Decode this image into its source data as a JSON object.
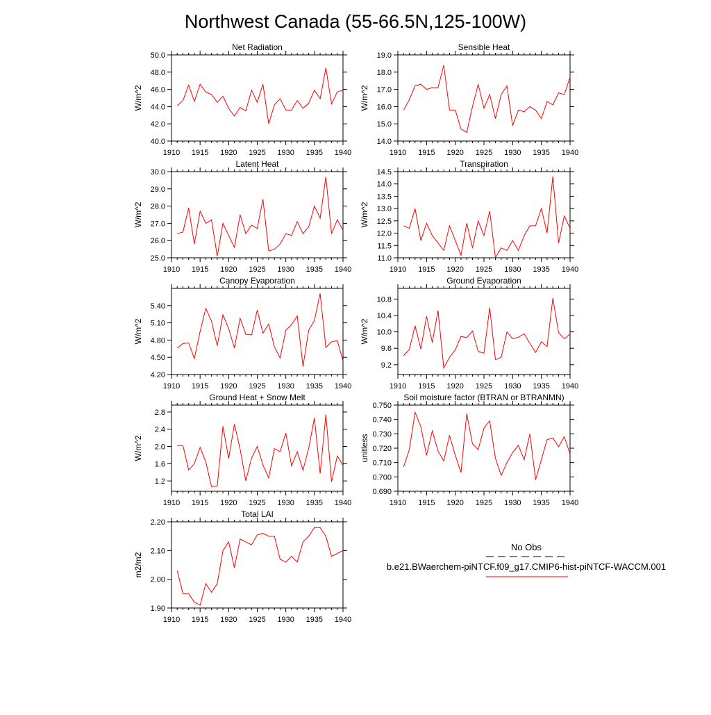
{
  "title": "Northwest Canada (55-66.5N,125-100W)",
  "colors": {
    "model": "#ff0000",
    "obs": "#000000",
    "axis": "#000000"
  },
  "legend": {
    "obs_label": "No Obs",
    "model_label": "b.e21.BWaerchem-piNTCF.f09_g17.CMIP6-hist-piNTCF-WACCM.001"
  },
  "chart_data": [
    {
      "type": "line",
      "title": "Net Radiation",
      "ylabel": "W/m^2",
      "xlabel": "",
      "xlim": [
        1910,
        1940
      ],
      "ylim": [
        40.0,
        50.0
      ],
      "xticks": [
        1910,
        1915,
        1920,
        1925,
        1930,
        1935,
        1940
      ],
      "xtick_labels": [
        "1910",
        "1915",
        "1920",
        "1925",
        "1930",
        "1935",
        "1940"
      ],
      "yticks": [
        40,
        42,
        44,
        46,
        48,
        50
      ],
      "ytick_labels": [
        "40.0",
        "42.0",
        "44.0",
        "46.0",
        "48.0",
        "50.0"
      ],
      "grid": false,
      "legend": "none",
      "x": [
        1911,
        1912,
        1913,
        1914,
        1915,
        1916,
        1917,
        1918,
        1919,
        1920,
        1921,
        1922,
        1923,
        1924,
        1925,
        1926,
        1927,
        1928,
        1929,
        1930,
        1931,
        1932,
        1933,
        1934,
        1935,
        1936,
        1937,
        1938,
        1939,
        1940
      ],
      "series": [
        {
          "values": [
            44.1,
            44.7,
            46.5,
            44.6,
            46.6,
            45.7,
            45.4,
            44.5,
            45.2,
            43.8,
            42.9,
            43.9,
            43.5,
            45.9,
            44.5,
            46.6,
            42.0,
            44.2,
            44.9,
            43.6,
            43.6,
            44.7,
            43.8,
            44.4,
            45.9,
            44.9,
            48.5,
            44.3,
            45.7,
            45.9
          ]
        }
      ]
    },
    {
      "type": "line",
      "title": "Sensible Heat",
      "ylabel": "W/m^2",
      "xlabel": "",
      "xlim": [
        1910,
        1940
      ],
      "ylim": [
        14.0,
        19.0
      ],
      "xticks": [
        1910,
        1915,
        1920,
        1925,
        1930,
        1935,
        1940
      ],
      "xtick_labels": [
        "1910",
        "1915",
        "1920",
        "1925",
        "1930",
        "1935",
        "1940"
      ],
      "yticks": [
        14,
        15,
        16,
        17,
        18,
        19
      ],
      "ytick_labels": [
        "14.0",
        "15.0",
        "16.0",
        "17.0",
        "18.0",
        "19.0"
      ],
      "grid": false,
      "legend": "none",
      "x": [
        1911,
        1912,
        1913,
        1914,
        1915,
        1916,
        1917,
        1918,
        1919,
        1920,
        1921,
        1922,
        1923,
        1924,
        1925,
        1926,
        1927,
        1928,
        1929,
        1930,
        1931,
        1932,
        1933,
        1934,
        1935,
        1936,
        1937,
        1938,
        1939,
        1940
      ],
      "series": [
        {
          "values": [
            15.8,
            16.4,
            17.2,
            17.3,
            17.0,
            17.1,
            17.1,
            18.4,
            15.8,
            15.8,
            14.7,
            14.5,
            16.0,
            17.3,
            15.9,
            16.7,
            15.3,
            16.7,
            17.2,
            14.9,
            15.8,
            15.7,
            16.0,
            15.8,
            15.3,
            16.3,
            16.1,
            16.8,
            16.7,
            17.7
          ]
        }
      ]
    },
    {
      "type": "line",
      "title": "Latent Heat",
      "ylabel": "W/m^2",
      "xlabel": "",
      "xlim": [
        1910,
        1940
      ],
      "ylim": [
        25.0,
        30.0
      ],
      "xticks": [
        1910,
        1915,
        1920,
        1925,
        1930,
        1935,
        1940
      ],
      "xtick_labels": [
        "1910",
        "1915",
        "1920",
        "1925",
        "1930",
        "1935",
        "1940"
      ],
      "yticks": [
        25,
        26,
        27,
        28,
        29,
        30
      ],
      "ytick_labels": [
        "25.0",
        "26.0",
        "27.0",
        "28.0",
        "29.0",
        "30.0"
      ],
      "grid": false,
      "legend": "none",
      "x": [
        1911,
        1912,
        1913,
        1914,
        1915,
        1916,
        1917,
        1918,
        1919,
        1920,
        1921,
        1922,
        1923,
        1924,
        1925,
        1926,
        1927,
        1928,
        1929,
        1930,
        1931,
        1932,
        1933,
        1934,
        1935,
        1936,
        1937,
        1938,
        1939,
        1940
      ],
      "series": [
        {
          "values": [
            26.4,
            26.5,
            27.9,
            25.8,
            27.7,
            27.0,
            27.2,
            25.1,
            27.0,
            26.3,
            25.6,
            27.5,
            26.4,
            26.9,
            26.7,
            28.4,
            25.4,
            25.5,
            25.8,
            26.4,
            26.3,
            27.1,
            26.4,
            26.8,
            28.0,
            27.3,
            29.7,
            26.4,
            27.2,
            26.6
          ]
        }
      ]
    },
    {
      "type": "line",
      "title": "Transpiration",
      "ylabel": "W/m^2",
      "xlabel": "",
      "xlim": [
        1910,
        1940
      ],
      "ylim": [
        11.0,
        14.5
      ],
      "xticks": [
        1910,
        1915,
        1920,
        1925,
        1930,
        1935,
        1940
      ],
      "xtick_labels": [
        "1910",
        "1915",
        "1920",
        "1925",
        "1930",
        "1935",
        "1940"
      ],
      "yticks": [
        11.0,
        11.5,
        12.0,
        12.5,
        13.0,
        13.5,
        14.0,
        14.5
      ],
      "ytick_labels": [
        "11.0",
        "11.5",
        "12.0",
        "12.5",
        "13.0",
        "13.5",
        "14.0",
        "14.5"
      ],
      "grid": false,
      "legend": "none",
      "x": [
        1911,
        1912,
        1913,
        1914,
        1915,
        1916,
        1917,
        1918,
        1919,
        1920,
        1921,
        1922,
        1923,
        1924,
        1925,
        1926,
        1927,
        1928,
        1929,
        1930,
        1931,
        1932,
        1933,
        1934,
        1935,
        1936,
        1937,
        1938,
        1939,
        1940
      ],
      "series": [
        {
          "values": [
            12.3,
            12.2,
            13.0,
            11.7,
            12.4,
            11.9,
            11.6,
            11.3,
            12.3,
            11.7,
            11.1,
            12.4,
            11.4,
            12.5,
            11.9,
            12.9,
            11.0,
            11.4,
            11.3,
            11.7,
            11.3,
            11.9,
            12.3,
            12.3,
            13.0,
            12.0,
            14.3,
            11.6,
            12.7,
            12.2
          ]
        }
      ]
    },
    {
      "type": "line",
      "title": "Canopy Evaporation",
      "ylabel": "W/m^2",
      "xlabel": "",
      "xlim": [
        1910,
        1940
      ],
      "ylim": [
        4.2,
        5.7
      ],
      "xticks": [
        1910,
        1915,
        1920,
        1925,
        1930,
        1935,
        1940
      ],
      "xtick_labels": [
        "1910",
        "1915",
        "1920",
        "1925",
        "1930",
        "1935",
        "1940"
      ],
      "yticks": [
        4.2,
        4.5,
        4.8,
        5.1,
        5.4
      ],
      "ytick_labels": [
        "4.20",
        "4.50",
        "4.80",
        "5.10",
        "5.40"
      ],
      "grid": false,
      "legend": "none",
      "x": [
        1911,
        1912,
        1913,
        1914,
        1915,
        1916,
        1917,
        1918,
        1919,
        1920,
        1921,
        1922,
        1923,
        1924,
        1925,
        1926,
        1927,
        1928,
        1929,
        1930,
        1931,
        1932,
        1933,
        1934,
        1935,
        1936,
        1937,
        1938,
        1939,
        1940
      ],
      "series": [
        {
          "values": [
            4.66,
            4.74,
            4.75,
            4.48,
            4.95,
            5.35,
            5.13,
            4.7,
            5.24,
            5.0,
            4.66,
            5.18,
            4.9,
            4.89,
            5.32,
            4.92,
            5.08,
            4.68,
            4.49,
            4.97,
            5.07,
            5.22,
            4.34,
            4.97,
            5.14,
            5.61,
            4.67,
            4.77,
            4.79,
            4.44
          ]
        }
      ]
    },
    {
      "type": "line",
      "title": "Ground Evaporation",
      "ylabel": "W/m^2",
      "xlabel": "",
      "xlim": [
        1910,
        1940
      ],
      "ylim": [
        8.96,
        11.06
      ],
      "xticks": [
        1910,
        1915,
        1920,
        1925,
        1930,
        1935,
        1940
      ],
      "xtick_labels": [
        "1910",
        "1915",
        "1920",
        "1925",
        "1930",
        "1935",
        "1940"
      ],
      "yticks": [
        9.2,
        9.6,
        10.0,
        10.4,
        10.8
      ],
      "ytick_labels": [
        "9.2",
        "9.6",
        "10.0",
        "10.4",
        "10.8"
      ],
      "grid": false,
      "legend": "none",
      "x": [
        1911,
        1912,
        1913,
        1914,
        1915,
        1916,
        1917,
        1918,
        1919,
        1920,
        1921,
        1922,
        1923,
        1924,
        1925,
        1926,
        1927,
        1928,
        1929,
        1930,
        1931,
        1932,
        1933,
        1934,
        1935,
        1936,
        1937,
        1938,
        1939,
        1940
      ],
      "series": [
        {
          "values": [
            9.42,
            9.57,
            10.15,
            9.58,
            10.38,
            9.74,
            10.52,
            9.12,
            9.38,
            9.56,
            9.89,
            9.86,
            10.02,
            9.52,
            9.48,
            10.59,
            9.32,
            9.38,
            10.0,
            9.83,
            9.87,
            9.95,
            9.72,
            9.5,
            9.76,
            9.64,
            10.82,
            9.98,
            9.83,
            9.95
          ]
        }
      ]
    },
    {
      "type": "line",
      "title": "Ground Heat + Snow Melt",
      "ylabel": "W/m^2",
      "xlabel": "",
      "xlim": [
        1910,
        1940
      ],
      "ylim": [
        0.96,
        2.96
      ],
      "xticks": [
        1910,
        1915,
        1920,
        1925,
        1930,
        1935,
        1940
      ],
      "xtick_labels": [
        "1910",
        "1915",
        "1920",
        "1925",
        "1930",
        "1935",
        "1940"
      ],
      "yticks": [
        1.2,
        1.6,
        2.0,
        2.4,
        2.8
      ],
      "ytick_labels": [
        "1.2",
        "1.6",
        "2.0",
        "2.4",
        "2.8"
      ],
      "grid": false,
      "legend": "none",
      "x": [
        1911,
        1912,
        1913,
        1914,
        1915,
        1916,
        1917,
        1918,
        1919,
        1920,
        1921,
        1922,
        1923,
        1924,
        1925,
        1926,
        1927,
        1928,
        1929,
        1930,
        1931,
        1932,
        1933,
        1934,
        1935,
        1936,
        1937,
        1938,
        1939,
        1940
      ],
      "series": [
        {
          "values": [
            2.02,
            2.02,
            1.45,
            1.6,
            1.98,
            1.64,
            1.07,
            1.08,
            2.47,
            1.72,
            2.52,
            1.94,
            1.2,
            1.73,
            2.0,
            1.57,
            1.27,
            1.95,
            1.88,
            2.31,
            1.55,
            1.88,
            1.45,
            1.96,
            2.66,
            1.37,
            2.74,
            1.18,
            1.78,
            1.56
          ]
        }
      ]
    },
    {
      "type": "line",
      "title": "Soil moisture factor (BTRAN or BTRANMN)",
      "ylabel": "unitless",
      "xlabel": "",
      "xlim": [
        1910,
        1940
      ],
      "ylim": [
        0.69,
        0.75
      ],
      "xticks": [
        1910,
        1915,
        1920,
        1925,
        1930,
        1935,
        1940
      ],
      "xtick_labels": [
        "1910",
        "1915",
        "1920",
        "1925",
        "1930",
        "1935",
        "1940"
      ],
      "yticks": [
        0.69,
        0.7,
        0.71,
        0.72,
        0.73,
        0.74,
        0.75
      ],
      "ytick_labels": [
        "0.690",
        "0.700",
        "0.710",
        "0.720",
        "0.730",
        "0.740",
        "0.750"
      ],
      "grid": false,
      "legend": "none",
      "x": [
        1911,
        1912,
        1913,
        1914,
        1915,
        1916,
        1917,
        1918,
        1919,
        1920,
        1921,
        1922,
        1923,
        1924,
        1925,
        1926,
        1927,
        1928,
        1929,
        1930,
        1931,
        1932,
        1933,
        1934,
        1935,
        1936,
        1937,
        1938,
        1939,
        1940
      ],
      "series": [
        {
          "values": [
            0.707,
            0.719,
            0.745,
            0.735,
            0.715,
            0.732,
            0.718,
            0.711,
            0.729,
            0.715,
            0.703,
            0.744,
            0.723,
            0.719,
            0.734,
            0.739,
            0.713,
            0.701,
            0.71,
            0.717,
            0.722,
            0.712,
            0.73,
            0.698,
            0.712,
            0.726,
            0.727,
            0.721,
            0.728,
            0.716
          ]
        }
      ]
    },
    {
      "type": "line",
      "title": "Total LAI",
      "ylabel": "m2/m2",
      "xlabel": "",
      "xlim": [
        1910,
        1940
      ],
      "ylim": [
        1.9,
        2.2
      ],
      "xticks": [
        1910,
        1915,
        1920,
        1925,
        1930,
        1935,
        1940
      ],
      "xtick_labels": [
        "1910",
        "1915",
        "1920",
        "1925",
        "1930",
        "1935",
        "1940"
      ],
      "yticks": [
        1.9,
        2.0,
        2.1,
        2.2
      ],
      "ytick_labels": [
        "1.90",
        "2.00",
        "2.10",
        "2.20"
      ],
      "grid": false,
      "legend": "none",
      "x": [
        1911,
        1912,
        1913,
        1914,
        1915,
        1916,
        1917,
        1918,
        1919,
        1920,
        1921,
        1922,
        1923,
        1924,
        1925,
        1926,
        1927,
        1928,
        1929,
        1930,
        1931,
        1932,
        1933,
        1934,
        1935,
        1936,
        1937,
        1938,
        1939,
        1940
      ],
      "series": [
        {
          "values": [
            2.03,
            1.95,
            1.95,
            1.92,
            1.91,
            1.985,
            1.955,
            1.985,
            2.1,
            2.13,
            2.04,
            2.14,
            2.13,
            2.12,
            2.155,
            2.16,
            2.15,
            2.15,
            2.07,
            2.06,
            2.08,
            2.06,
            2.13,
            2.15,
            2.18,
            2.18,
            2.15,
            2.08,
            2.09,
            2.1
          ]
        }
      ]
    }
  ]
}
